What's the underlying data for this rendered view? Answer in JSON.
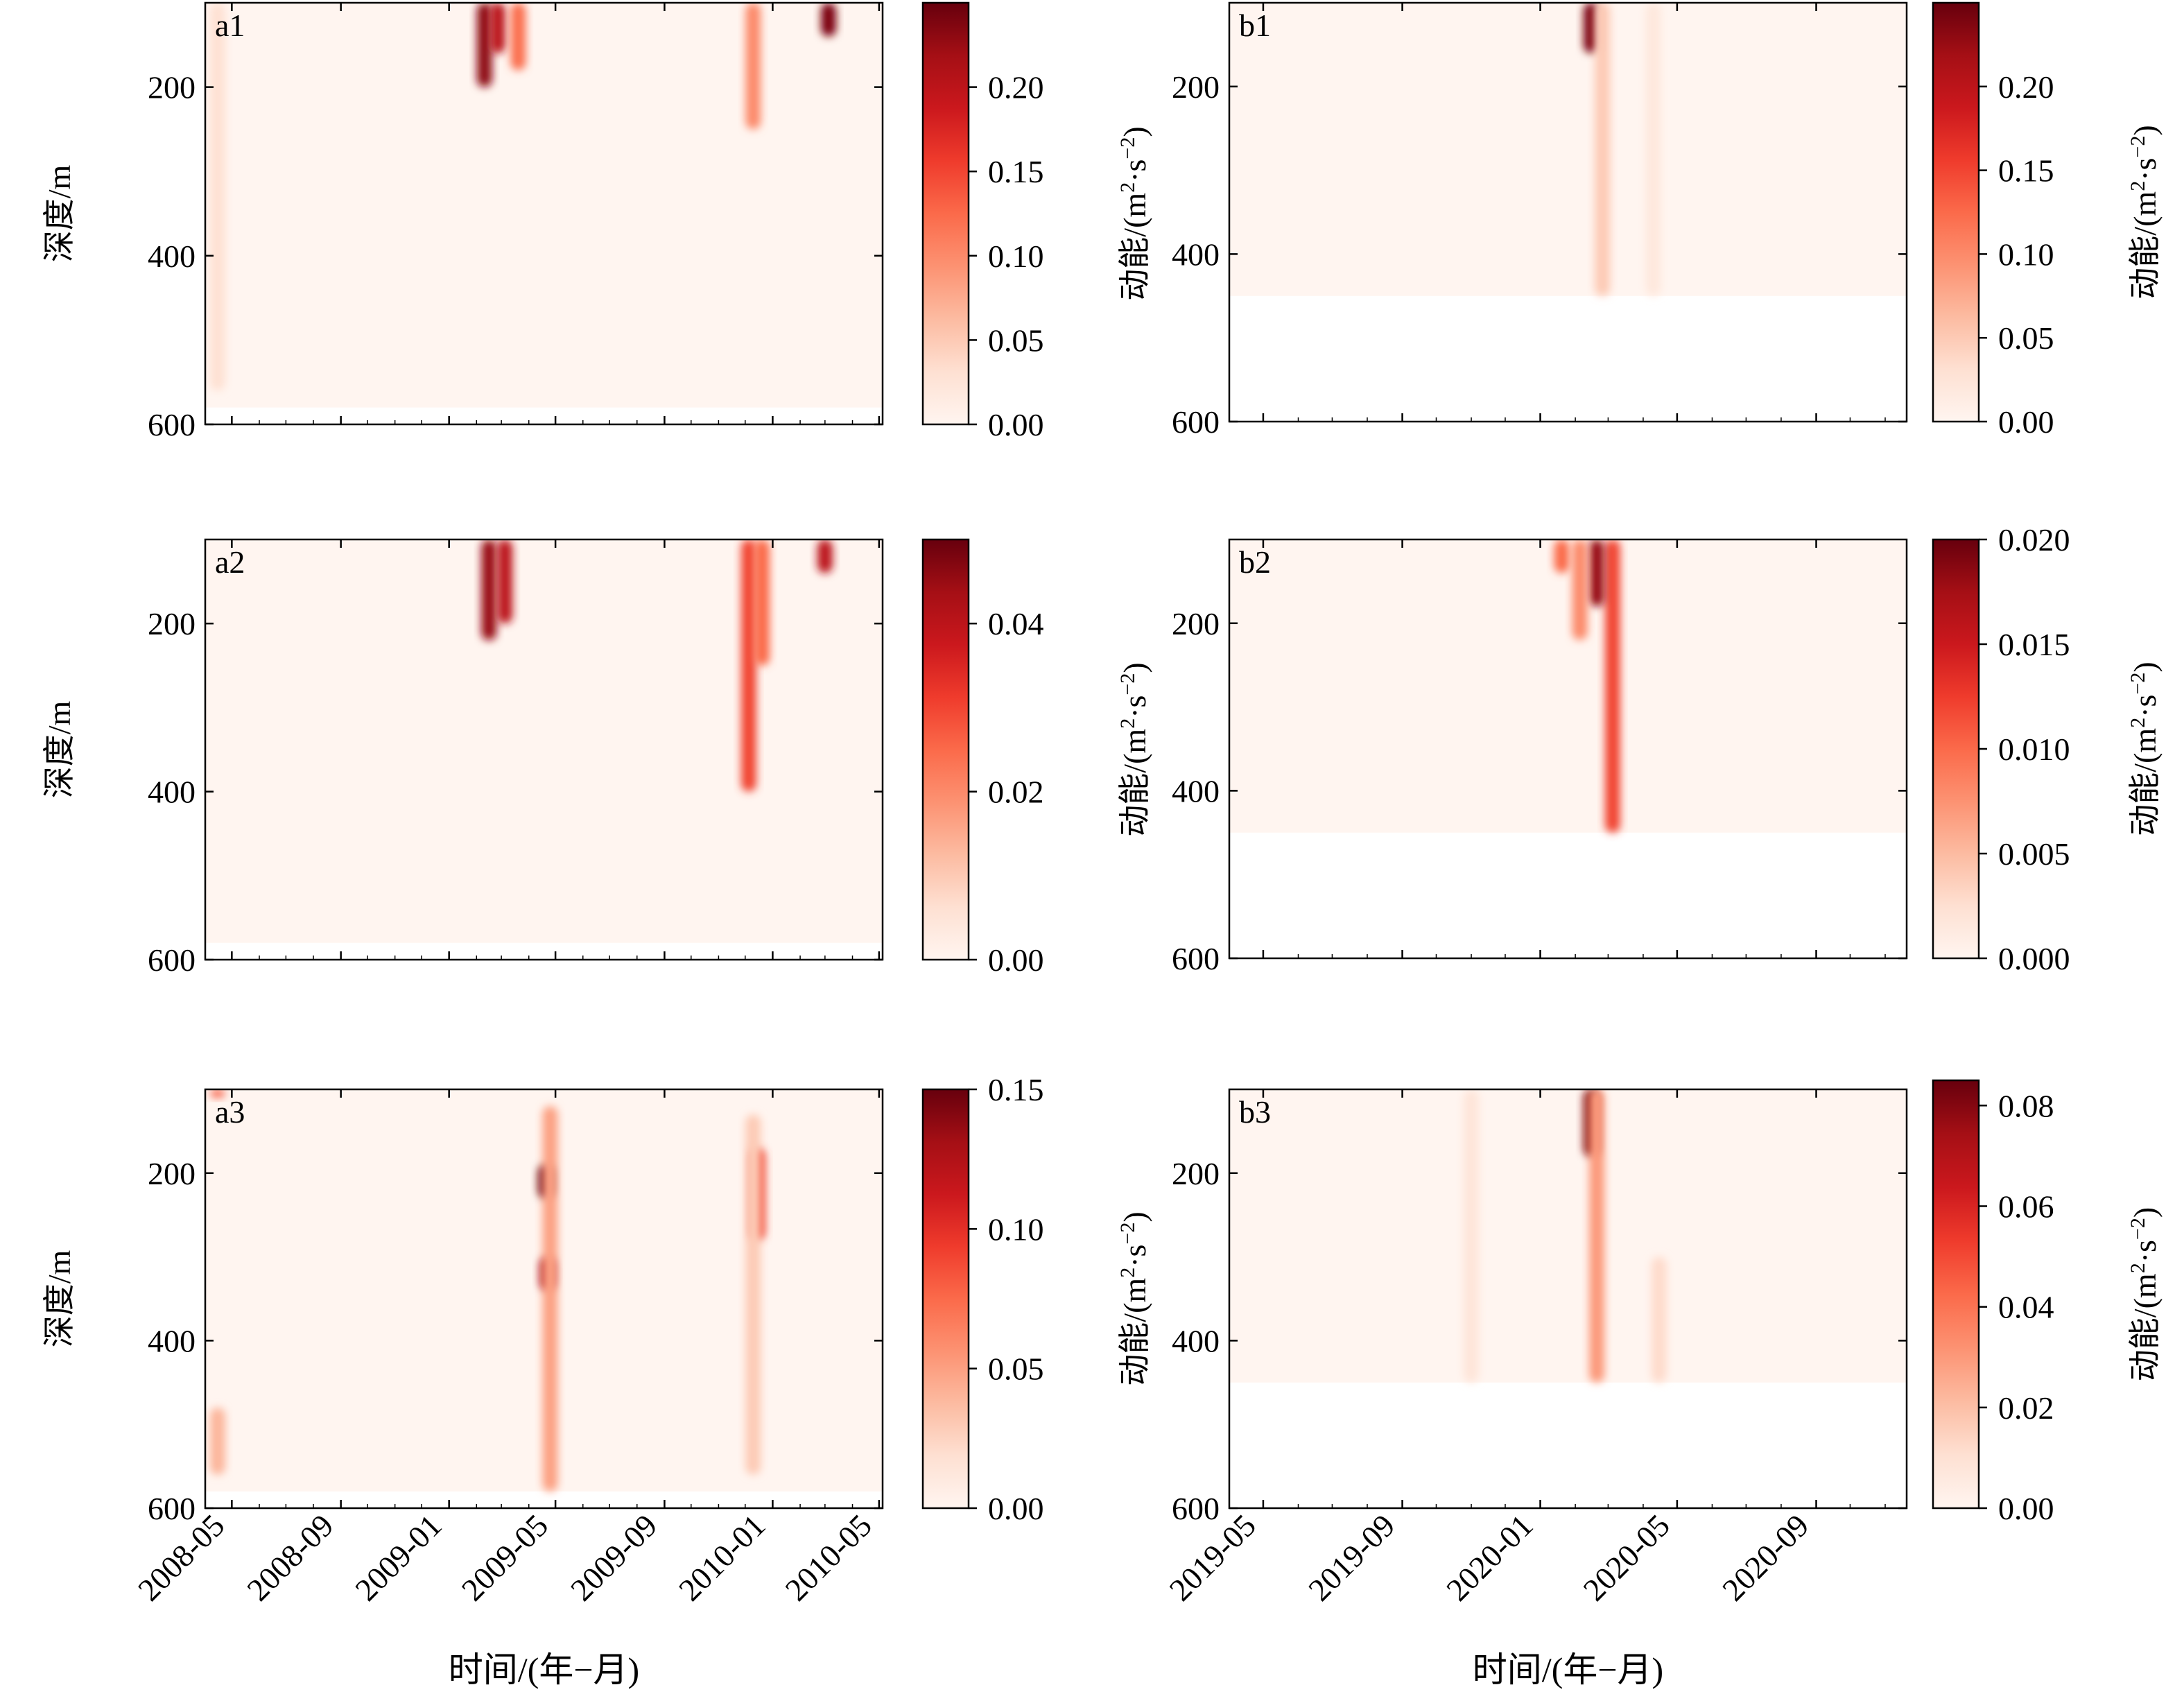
{
  "figure": {
    "xlabel": "时间/(年−月)",
    "ylabel": "深度/m",
    "colorbar_label_prefix": "动能/(m",
    "colorbar_label_mid": "·s",
    "colorbar_label_suffix": ")",
    "colorbar_exp": "2",
    "colorbar_exp_neg": "−2",
    "colormap": [
      "#fff5f0",
      "#fee0d2",
      "#fcbba1",
      "#fc9272",
      "#fb6a4a",
      "#ef3b2c",
      "#cb181d",
      "#a50f15",
      "#67000d"
    ]
  },
  "chart_data": [
    {
      "id": "a1",
      "type": "heatmap",
      "panel_label": "a1",
      "xlabel": "",
      "ylabel": "深度/m",
      "ylim": [
        100,
        600
      ],
      "y_ticks": [
        "200",
        "400",
        "600"
      ],
      "y_tick_values": [
        200,
        400,
        600
      ],
      "x_range": [
        "2008-04-01",
        "2010-05-05"
      ],
      "x_ticks": [],
      "data_max_depth": 580,
      "colorbar_max": 0.25,
      "colorbar_ticks": [
        "0.00",
        "0.05",
        "0.10",
        "0.15",
        "0.20"
      ],
      "colorbar_tick_values": [
        0,
        0.05,
        0.1,
        0.15,
        0.2
      ],
      "hotspots": [
        {
          "date": "2009-02-10",
          "depth_top": 100,
          "depth_bottom": 200,
          "value": 0.23
        },
        {
          "date": "2009-02-25",
          "depth_top": 100,
          "depth_bottom": 160,
          "value": 0.2
        },
        {
          "date": "2009-03-20",
          "depth_top": 100,
          "depth_bottom": 180,
          "value": 0.12
        },
        {
          "date": "2009-12-10",
          "depth_top": 100,
          "depth_bottom": 250,
          "value": 0.1
        },
        {
          "date": "2010-03-05",
          "depth_top": 100,
          "depth_bottom": 140,
          "value": 0.24
        },
        {
          "date": "2008-04-15",
          "depth_top": 100,
          "depth_bottom": 560,
          "value": 0.03
        }
      ]
    },
    {
      "id": "a2",
      "type": "heatmap",
      "panel_label": "a2",
      "xlabel": "",
      "ylabel": "深度/m",
      "ylim": [
        100,
        600
      ],
      "y_ticks": [
        "200",
        "400",
        "600"
      ],
      "y_tick_values": [
        200,
        400,
        600
      ],
      "x_range": [
        "2008-04-01",
        "2010-05-05"
      ],
      "x_ticks": [],
      "data_max_depth": 580,
      "colorbar_max": 0.05,
      "colorbar_ticks": [
        "0.00",
        "0.02",
        "0.04"
      ],
      "colorbar_tick_values": [
        0,
        0.02,
        0.04
      ],
      "hotspots": [
        {
          "date": "2009-02-15",
          "depth_top": 100,
          "depth_bottom": 220,
          "value": 0.045
        },
        {
          "date": "2009-03-05",
          "depth_top": 100,
          "depth_bottom": 200,
          "value": 0.04
        },
        {
          "date": "2009-12-05",
          "depth_top": 100,
          "depth_bottom": 400,
          "value": 0.03
        },
        {
          "date": "2009-12-20",
          "depth_top": 100,
          "depth_bottom": 250,
          "value": 0.025
        },
        {
          "date": "2010-03-01",
          "depth_top": 100,
          "depth_bottom": 140,
          "value": 0.04
        }
      ]
    },
    {
      "id": "a3",
      "type": "heatmap",
      "panel_label": "a3",
      "xlabel": "时间/(年−月)",
      "ylabel": "深度/m",
      "ylim": [
        100,
        600
      ],
      "y_ticks": [
        "200",
        "400",
        "600"
      ],
      "y_tick_values": [
        200,
        400,
        600
      ],
      "x_range": [
        "2008-04-01",
        "2010-05-05"
      ],
      "x_ticks": [
        "2008-05",
        "2008-09",
        "2009-01",
        "2009-05",
        "2009-09",
        "2010-01",
        "2010-05"
      ],
      "x_tick_dates": [
        "2008-05-01",
        "2008-09-01",
        "2009-01-01",
        "2009-05-01",
        "2009-09-01",
        "2010-01-01",
        "2010-05-01"
      ],
      "data_max_depth": 580,
      "colorbar_max": 0.15,
      "colorbar_ticks": [
        "0.00",
        "0.05",
        "0.10",
        "0.15"
      ],
      "colorbar_tick_values": [
        0,
        0.05,
        0.1,
        0.15
      ],
      "hotspots": [
        {
          "date": "2009-04-20",
          "depth_top": 190,
          "depth_bottom": 230,
          "value": 0.15
        },
        {
          "date": "2009-04-22",
          "depth_top": 300,
          "depth_bottom": 340,
          "value": 0.13
        },
        {
          "date": "2009-04-25",
          "depth_top": 120,
          "depth_bottom": 580,
          "value": 0.05
        },
        {
          "date": "2009-12-15",
          "depth_top": 170,
          "depth_bottom": 280,
          "value": 0.09
        },
        {
          "date": "2009-12-10",
          "depth_top": 130,
          "depth_bottom": 560,
          "value": 0.03
        },
        {
          "date": "2008-04-15",
          "depth_top": 480,
          "depth_bottom": 560,
          "value": 0.04
        },
        {
          "date": "2008-04-15",
          "depth_top": 100,
          "depth_bottom": 110,
          "value": 0.08
        }
      ]
    },
    {
      "id": "b1",
      "type": "heatmap",
      "panel_label": "b1",
      "xlabel": "",
      "ylabel": "",
      "ylim": [
        100,
        600
      ],
      "y_ticks": [
        "200",
        "400",
        "600"
      ],
      "y_tick_values": [
        200,
        400,
        600
      ],
      "x_range": [
        "2019-04-01",
        "2020-11-20"
      ],
      "x_ticks": [],
      "data_max_depth": 450,
      "colorbar_max": 0.25,
      "colorbar_ticks": [
        "0.00",
        "0.05",
        "0.10",
        "0.15",
        "0.20"
      ],
      "colorbar_tick_values": [
        0,
        0.05,
        0.1,
        0.15,
        0.2
      ],
      "hotspots": [
        {
          "date": "2020-02-15",
          "depth_top": 100,
          "depth_bottom": 160,
          "value": 0.24
        },
        {
          "date": "2020-02-25",
          "depth_top": 100,
          "depth_bottom": 450,
          "value": 0.05
        },
        {
          "date": "2020-04-10",
          "depth_top": 100,
          "depth_bottom": 450,
          "value": 0.02
        }
      ]
    },
    {
      "id": "b2",
      "type": "heatmap",
      "panel_label": "b2",
      "xlabel": "",
      "ylabel": "",
      "ylim": [
        100,
        600
      ],
      "y_ticks": [
        "200",
        "400",
        "600"
      ],
      "y_tick_values": [
        200,
        400,
        600
      ],
      "x_range": [
        "2019-04-01",
        "2020-11-20"
      ],
      "x_ticks": [],
      "data_max_depth": 450,
      "colorbar_max": 0.02,
      "colorbar_ticks": [
        "0.000",
        "0.005",
        "0.010",
        "0.015",
        "0.020"
      ],
      "colorbar_tick_values": [
        0,
        0.005,
        0.01,
        0.015,
        0.02
      ],
      "hotspots": [
        {
          "date": "2020-03-05",
          "depth_top": 100,
          "depth_bottom": 450,
          "value": 0.012
        },
        {
          "date": "2020-02-20",
          "depth_top": 100,
          "depth_bottom": 180,
          "value": 0.018
        },
        {
          "date": "2020-01-20",
          "depth_top": 100,
          "depth_bottom": 140,
          "value": 0.01
        },
        {
          "date": "2020-02-05",
          "depth_top": 100,
          "depth_bottom": 220,
          "value": 0.008
        }
      ]
    },
    {
      "id": "b3",
      "type": "heatmap",
      "panel_label": "b3",
      "xlabel": "时间/(年−月)",
      "ylabel": "",
      "ylim": [
        100,
        600
      ],
      "y_ticks": [
        "200",
        "400",
        "600"
      ],
      "y_tick_values": [
        200,
        400,
        600
      ],
      "x_range": [
        "2019-04-01",
        "2020-11-20"
      ],
      "x_ticks": [
        "2019-05",
        "2019-09",
        "2020-01",
        "2020-05",
        "2020-09"
      ],
      "x_tick_dates": [
        "2019-05-01",
        "2019-09-01",
        "2020-01-01",
        "2020-05-01",
        "2020-09-01"
      ],
      "data_max_depth": 450,
      "colorbar_max": 0.085,
      "colorbar_ticks": [
        "0.00",
        "0.02",
        "0.04",
        "0.06",
        "0.08"
      ],
      "colorbar_tick_values": [
        0,
        0.02,
        0.04,
        0.06,
        0.08
      ],
      "hotspots": [
        {
          "date": "2020-02-15",
          "depth_top": 100,
          "depth_bottom": 180,
          "value": 0.08
        },
        {
          "date": "2020-02-20",
          "depth_top": 100,
          "depth_bottom": 450,
          "value": 0.03
        },
        {
          "date": "2020-04-15",
          "depth_top": 300,
          "depth_bottom": 450,
          "value": 0.012
        },
        {
          "date": "2019-11-01",
          "depth_top": 100,
          "depth_bottom": 450,
          "value": 0.008
        }
      ]
    }
  ]
}
